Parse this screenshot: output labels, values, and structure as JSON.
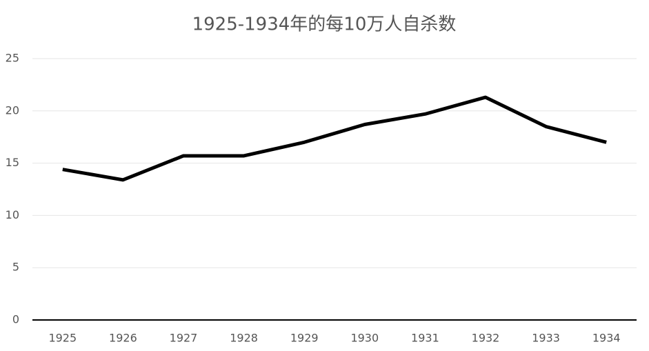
{
  "chart_data": {
    "type": "line",
    "title": "1925-1934年的每10万人自杀数",
    "categories": [
      "1925",
      "1926",
      "1927",
      "1928",
      "1929",
      "1930",
      "1931",
      "1932",
      "1933",
      "1934"
    ],
    "values": [
      14.4,
      13.4,
      15.7,
      15.7,
      17.0,
      18.7,
      19.7,
      21.3,
      18.5,
      17.0
    ],
    "color": "#000000",
    "ylim": [
      0,
      25
    ],
    "yticks": [
      0,
      5,
      10,
      15,
      20,
      25
    ],
    "grid": true
  }
}
